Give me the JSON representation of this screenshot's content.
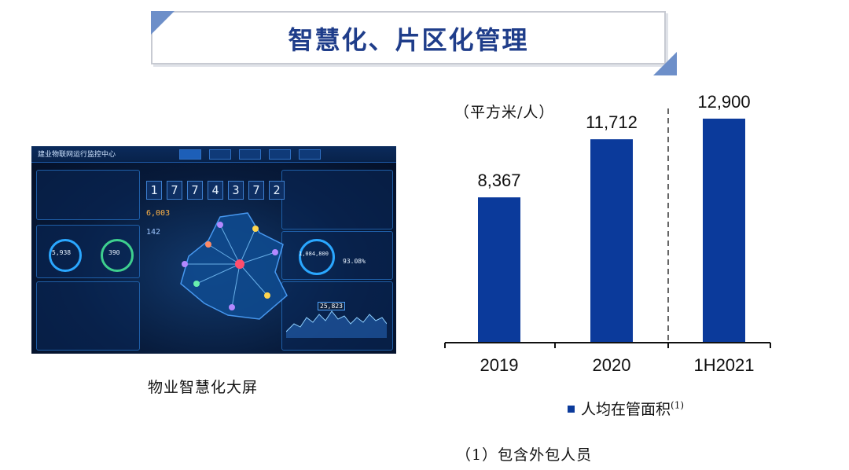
{
  "title": "智慧化、片区化管理",
  "dashboard": {
    "caption": "物业智慧化大屏",
    "brand": "建业物联网运行监控中心",
    "counter_digits": [
      "1",
      "7",
      "7",
      "4",
      "3",
      "7",
      "2"
    ],
    "stat_1": "6,003",
    "stat_2": "142",
    "ring_1": "5,938",
    "ring_2": "390",
    "ring_3": "1,084,800",
    "ring_4": "93.08%",
    "tooltip": "25,823"
  },
  "chart_data": {
    "type": "bar",
    "categories": [
      "2019",
      "2020",
      "1H2021"
    ],
    "series": [
      {
        "name": "人均在管面积",
        "values": [
          8367,
          11712,
          12900
        ]
      }
    ],
    "data_labels": [
      "8,367",
      "11,712",
      "12,900"
    ],
    "unit": "（平方米/人）",
    "legend_label": "人均在管面积",
    "legend_marker": "(1)",
    "legend_placement": "bottom",
    "ylim": [
      0,
      14300
    ],
    "grid": false,
    "divider_after_category": "2020",
    "bar_color": "#0b3a9b"
  },
  "footnote": "（1）包含外包人员"
}
